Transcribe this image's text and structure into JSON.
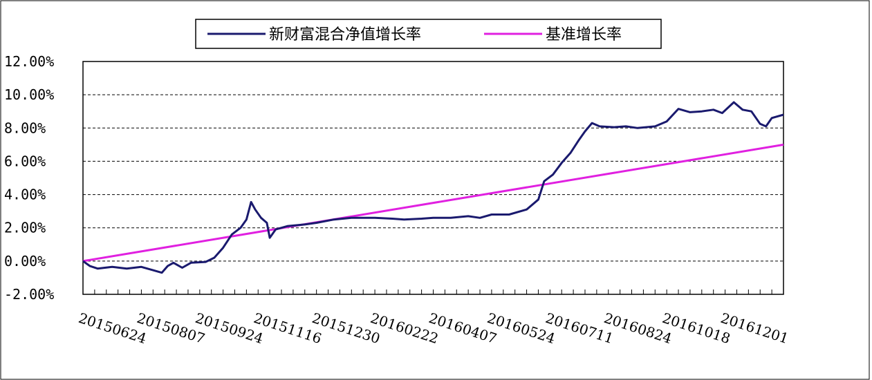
{
  "chart_data": {
    "type": "line",
    "title": "",
    "xlabel": "",
    "ylabel": "",
    "ylim": [
      -2,
      12
    ],
    "yticks": [
      -2,
      0,
      2,
      4,
      6,
      8,
      10,
      12
    ],
    "ytick_labels": [
      "-2.00%",
      "0.00%",
      "2.00%",
      "4.00%",
      "6.00%",
      "8.00%",
      "10.00%",
      "12.00%"
    ],
    "xtick_labels": [
      "20150624",
      "20150807",
      "20150924",
      "20151116",
      "20151230",
      "20160222",
      "20160407",
      "20160524",
      "20160711",
      "20160824",
      "20161018",
      "20161201"
    ],
    "x_range": [
      0,
      12
    ],
    "grid": "horizontal-dashed",
    "legend_position": "top-center",
    "colors": {
      "series_1": "#1a1a6e",
      "series_2": "#e020e0",
      "grid": "#000000"
    },
    "series": [
      {
        "name": "新财富混合净值增长率",
        "points": [
          [
            0,
            0.0
          ],
          [
            0.12,
            -0.3
          ],
          [
            0.25,
            -0.45
          ],
          [
            0.5,
            -0.35
          ],
          [
            0.75,
            -0.45
          ],
          [
            1.0,
            -0.35
          ],
          [
            1.2,
            -0.55
          ],
          [
            1.35,
            -0.7
          ],
          [
            1.45,
            -0.3
          ],
          [
            1.55,
            -0.1
          ],
          [
            1.7,
            -0.4
          ],
          [
            1.85,
            -0.1
          ],
          [
            2.1,
            -0.05
          ],
          [
            2.25,
            0.2
          ],
          [
            2.4,
            0.8
          ],
          [
            2.55,
            1.6
          ],
          [
            2.7,
            2.0
          ],
          [
            2.8,
            2.5
          ],
          [
            2.88,
            3.55
          ],
          [
            2.95,
            3.1
          ],
          [
            3.05,
            2.6
          ],
          [
            3.15,
            2.3
          ],
          [
            3.2,
            1.4
          ],
          [
            3.3,
            1.9
          ],
          [
            3.5,
            2.1
          ],
          [
            3.8,
            2.2
          ],
          [
            4.0,
            2.3
          ],
          [
            4.3,
            2.5
          ],
          [
            4.6,
            2.6
          ],
          [
            5.0,
            2.6
          ],
          [
            5.3,
            2.55
          ],
          [
            5.5,
            2.5
          ],
          [
            5.8,
            2.55
          ],
          [
            6.0,
            2.6
          ],
          [
            6.3,
            2.6
          ],
          [
            6.6,
            2.7
          ],
          [
            6.8,
            2.6
          ],
          [
            7.0,
            2.8
          ],
          [
            7.3,
            2.8
          ],
          [
            7.6,
            3.1
          ],
          [
            7.8,
            3.7
          ],
          [
            7.9,
            4.8
          ],
          [
            8.05,
            5.2
          ],
          [
            8.2,
            5.9
          ],
          [
            8.35,
            6.5
          ],
          [
            8.5,
            7.3
          ],
          [
            8.6,
            7.8
          ],
          [
            8.72,
            8.3
          ],
          [
            8.85,
            8.1
          ],
          [
            9.1,
            8.05
          ],
          [
            9.3,
            8.1
          ],
          [
            9.5,
            8.0
          ],
          [
            9.8,
            8.1
          ],
          [
            10.0,
            8.4
          ],
          [
            10.2,
            9.15
          ],
          [
            10.4,
            8.95
          ],
          [
            10.6,
            9.0
          ],
          [
            10.8,
            9.1
          ],
          [
            10.95,
            8.9
          ],
          [
            11.15,
            9.55
          ],
          [
            11.3,
            9.1
          ],
          [
            11.45,
            9.0
          ],
          [
            11.6,
            8.25
          ],
          [
            11.7,
            8.1
          ],
          [
            11.8,
            8.6
          ],
          [
            12.0,
            8.8
          ]
        ]
      },
      {
        "name": "基准增长率",
        "points": [
          [
            0,
            0.0
          ],
          [
            12,
            7.0
          ]
        ]
      }
    ]
  }
}
